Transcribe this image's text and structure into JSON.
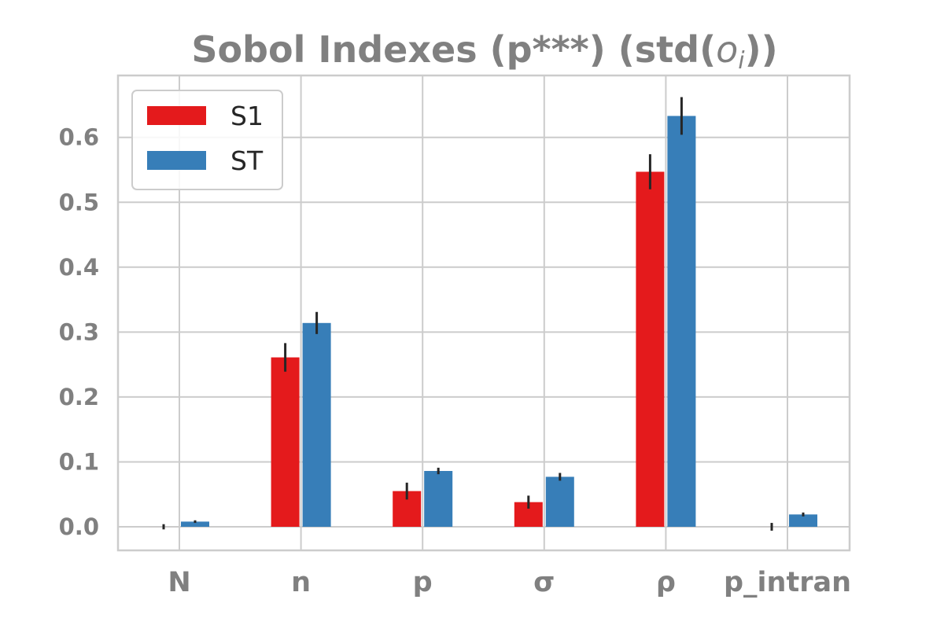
{
  "chart_data": {
    "type": "bar",
    "title": "Sobol Indexes (p***) (std(",
    "title_math": "o",
    "title_math_sub": "i",
    "title_end": "))",
    "categories": [
      "N",
      "n",
      "p",
      "σ",
      "ρ",
      "p_intran"
    ],
    "series": [
      {
        "name": "S1",
        "color": "#e41a1c",
        "values": [
          0.0,
          0.261,
          0.055,
          0.038,
          0.547,
          0.0
        ],
        "errors": [
          0.004,
          0.022,
          0.013,
          0.01,
          0.027,
          0.006
        ]
      },
      {
        "name": "ST",
        "color": "#377eb8",
        "values": [
          0.008,
          0.314,
          0.086,
          0.077,
          0.633,
          0.019
        ],
        "errors": [
          0.002,
          0.017,
          0.005,
          0.006,
          0.029,
          0.003
        ]
      }
    ],
    "yticks": [
      "0.0",
      "0.1",
      "0.2",
      "0.3",
      "0.4",
      "0.5",
      "0.6"
    ],
    "ylim": [
      -0.038,
      0.69
    ],
    "grid": true,
    "legend": "upper-left",
    "xlabel": "",
    "ylabel": ""
  }
}
